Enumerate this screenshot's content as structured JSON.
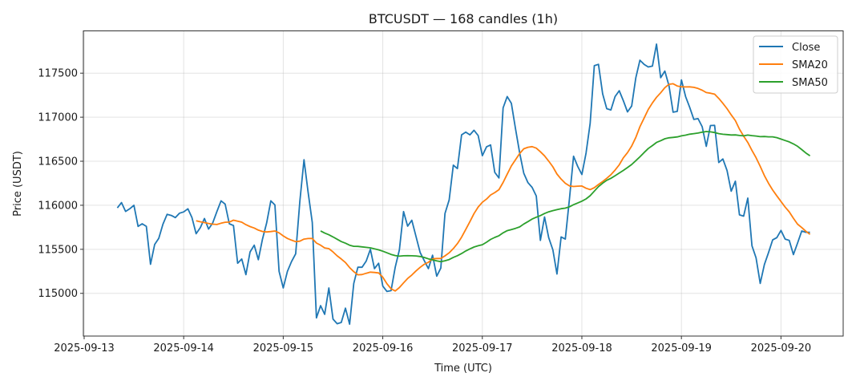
{
  "chart_data": {
    "type": "line",
    "title": "BTCUSDT — 168 candles (1h)",
    "xlabel": "Time (UTC)",
    "ylabel": "Price (USDT)",
    "x_start": "2025-09-13 08:00",
    "x_step_hours": 1,
    "xlim_hours_from_2025_09_13": [
      -0.19,
      183.0
    ],
    "ylim": [
      114515,
      117980
    ],
    "grid": true,
    "legend_position": "top-right",
    "x_ticks": [
      "2025-09-13",
      "2025-09-14",
      "2025-09-15",
      "2025-09-16",
      "2025-09-17",
      "2025-09-18",
      "2025-09-19",
      "2025-09-20"
    ],
    "y_ticks": [
      115000,
      115500,
      116000,
      116500,
      117000,
      117500
    ],
    "colors": {
      "close": "#1f77b4",
      "sma20": "#ff7f0e",
      "sma50": "#2ca02c"
    },
    "series": [
      {
        "name": "Close",
        "key": "close",
        "values": [
          115970,
          116030,
          115930,
          115960,
          116000,
          115760,
          115790,
          115760,
          115330,
          115556,
          115625,
          115785,
          115897,
          115885,
          115860,
          115910,
          115925,
          115960,
          115860,
          115677,
          115745,
          115850,
          115730,
          115800,
          115928,
          116050,
          116013,
          115790,
          115770,
          115342,
          115390,
          115213,
          115470,
          115547,
          115382,
          115616,
          115800,
          116050,
          116004,
          115250,
          115061,
          115250,
          115360,
          115449,
          116044,
          116517,
          116150,
          115806,
          114722,
          114860,
          114762,
          115061,
          114707,
          114655,
          114670,
          114832,
          114650,
          115113,
          115296,
          115296,
          115366,
          115500,
          115281,
          115342,
          115082,
          115021,
          115030,
          115296,
          115494,
          115928,
          115763,
          115830,
          115647,
          115464,
          115372,
          115281,
          115433,
          115195,
          115287,
          115907,
          116060,
          116456,
          116416,
          116800,
          116831,
          116800,
          116852,
          116792,
          116563,
          116663,
          116685,
          116374,
          116310,
          117106,
          117234,
          117158,
          116868,
          116593,
          116364,
          116257,
          116203,
          116105,
          115601,
          115867,
          115632,
          115494,
          115220,
          115641,
          115616,
          116074,
          116557,
          116441,
          116349,
          116593,
          116929,
          117585,
          117600,
          117265,
          117097,
          117082,
          117234,
          117301,
          117188,
          117060,
          117127,
          117448,
          117647,
          117600,
          117570,
          117580,
          117830,
          117448,
          117524,
          117356,
          117057,
          117066,
          117424,
          117234,
          117112,
          116975,
          116984,
          116892,
          116669,
          116905,
          116907,
          116486,
          116526,
          116395,
          116160,
          116273,
          115891,
          115876,
          116081,
          115540,
          115403,
          115113,
          115327,
          115464,
          115607,
          115632,
          115714,
          115616,
          115601,
          115440,
          115571,
          115708,
          115693,
          115693
        ]
      },
      {
        "name": "SMA20",
        "key": "sma20",
        "window": 20,
        "source": "Close"
      },
      {
        "name": "SMA50",
        "key": "sma50",
        "window": 50,
        "source": "Close"
      }
    ]
  }
}
